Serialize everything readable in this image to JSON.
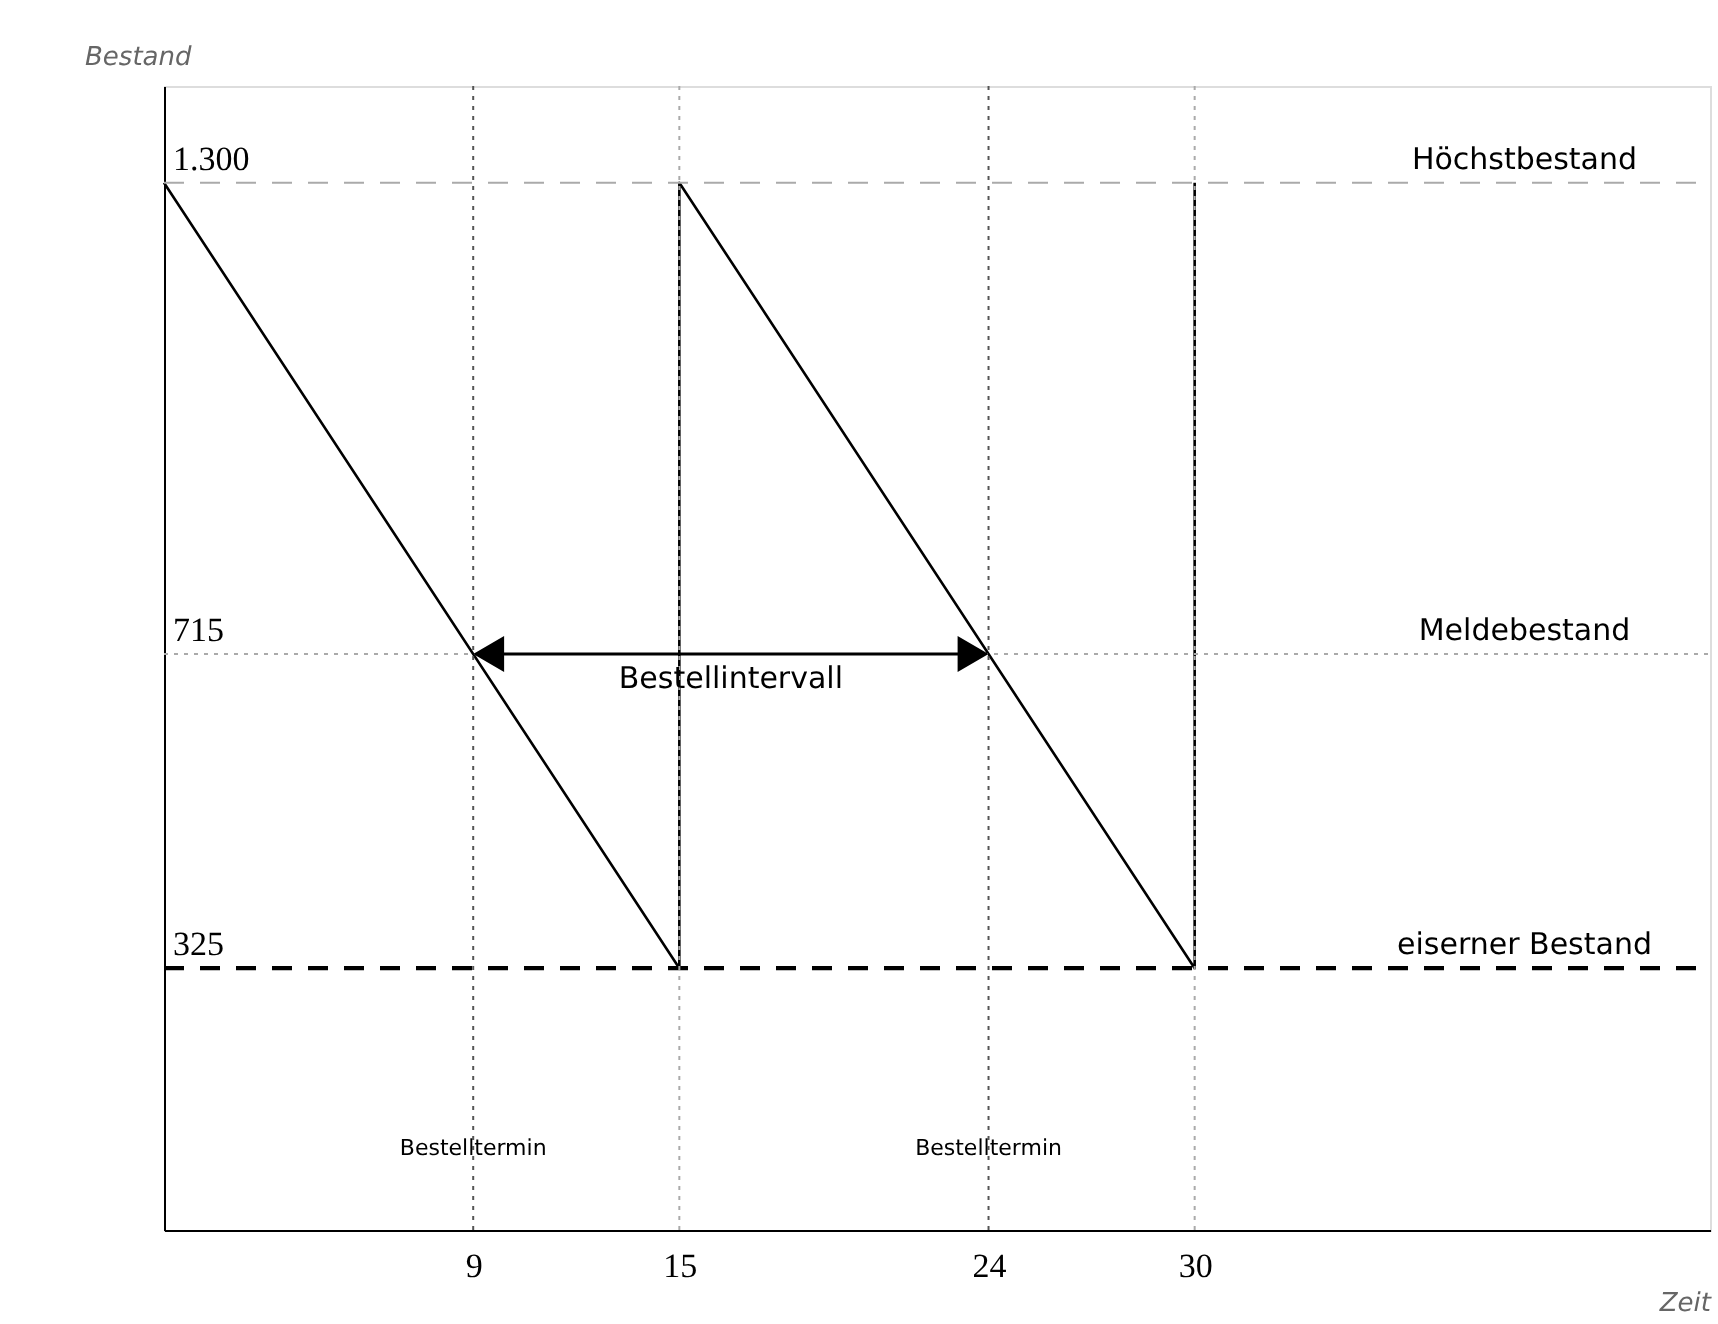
{
  "chart_data": {
    "type": "line",
    "xlabel": "Zeit",
    "ylabel": "Bestand",
    "x": [
      0,
      15,
      15,
      30,
      30
    ],
    "series": [
      {
        "color": "#000000",
        "values": [
          1300,
          325,
          1300,
          325,
          1300
        ]
      }
    ],
    "xlim": [
      0,
      45
    ],
    "ylim": [
      0,
      1420
    ],
    "xticks": [
      9,
      15,
      24,
      30
    ],
    "yticks": [
      325,
      715,
      {
        "value": 1300,
        "label": "1.300"
      }
    ],
    "grid": false,
    "marker": "none",
    "line_style": "solid",
    "ref_lines": [
      {
        "axis": "y",
        "value": 1300,
        "label": "Höchstbestand",
        "color": "#aaaaaa",
        "line_style": "dashed"
      },
      {
        "axis": "y",
        "value": 715,
        "label": "Meldebestand",
        "color": "#aaaaaa",
        "line_style": "dotted"
      },
      {
        "axis": "y",
        "value": 325,
        "label": "eiserner Bestand",
        "color": "#000000",
        "line_style": "dashed"
      },
      {
        "axis": "x",
        "value": 9,
        "color": "#555555",
        "line_style": "dotted"
      },
      {
        "axis": "x",
        "value": 15,
        "color": "#aaaaaa",
        "line_style": "dotted"
      },
      {
        "axis": "x",
        "value": 24,
        "color": "#555555",
        "line_style": "dotted"
      },
      {
        "axis": "x",
        "value": 30,
        "color": "#aaaaaa",
        "line_style": "dotted"
      }
    ],
    "annotations": [
      {
        "text": "Bestelltermin",
        "x": 9,
        "y": 100
      },
      {
        "text": "Bestelltermin",
        "x": 24,
        "y": 100
      },
      "Bestellintervall"
    ]
  }
}
